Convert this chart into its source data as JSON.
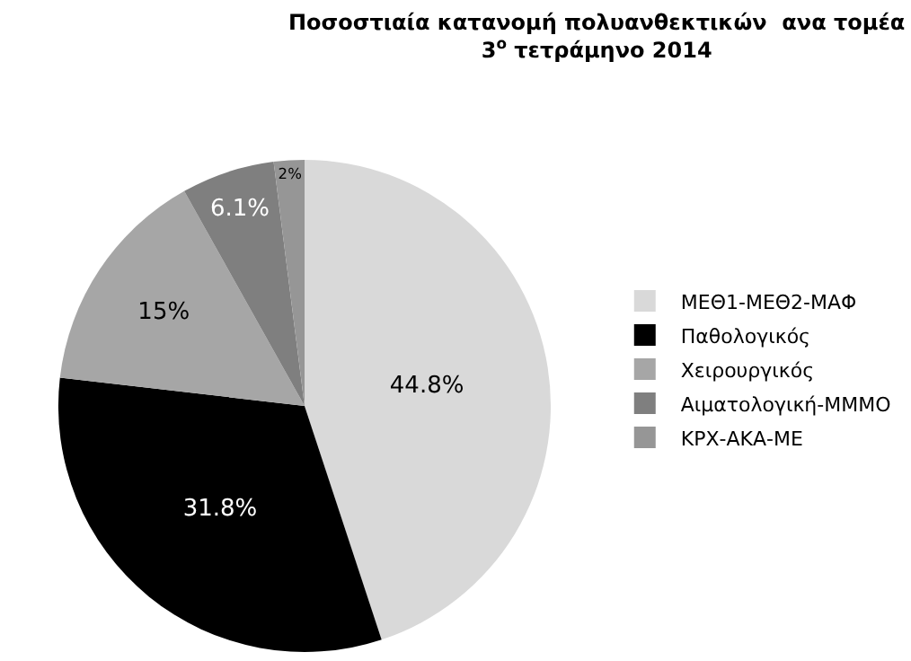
{
  "chart_data": {
    "type": "pie",
    "title": "Ποσοστιαία κατανομή πολυανθεκτικών  ανα τομέα\n3$^{ο}$ τετράμηνο 2014",
    "categories": [
      "ΜΕΘ1-ΜΕΘ2-ΜΑΦ",
      "Παθολογικός",
      "Χειρουργικός",
      "Αιματολογική-ΜΜΜΟ",
      "ΚΡΧ-ΑΚΑ-ΜΕ"
    ],
    "values": [
      44.8,
      31.8,
      15,
      6.1,
      2
    ],
    "value_labels": [
      "44.8%",
      "31.8%",
      "15%",
      "6.1%",
      "2%"
    ],
    "colors": [
      "#d9d9d9",
      "#000000",
      "#a6a6a6",
      "#7f7f7f",
      "#969696"
    ],
    "legend": "right"
  }
}
